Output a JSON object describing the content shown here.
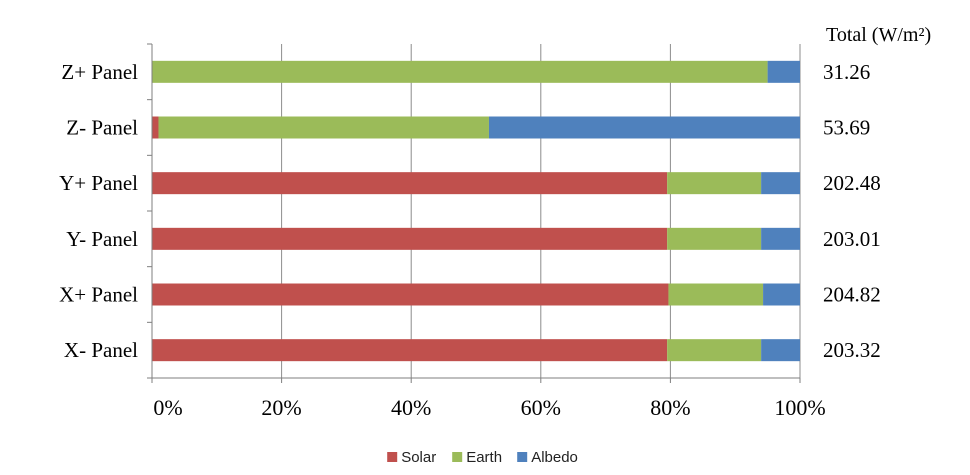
{
  "chart_data": {
    "type": "bar",
    "orientation": "horizontal",
    "stacked": "percent",
    "title": "",
    "xlabel": "",
    "ylabel": "",
    "xlim": [
      0,
      100
    ],
    "x_ticks": [
      "0%",
      "20%",
      "40%",
      "60%",
      "80%",
      "100%"
    ],
    "grid": "vertical",
    "legend_position": "bottom",
    "categories": [
      "Z+ Panel",
      "Z- Panel",
      "Y+ Panel",
      "Y- Panel",
      "X+ Panel",
      "X- Panel"
    ],
    "series": [
      {
        "name": "Solar",
        "color": "#c0504d",
        "values": [
          0,
          1,
          79.5,
          79.5,
          79.7,
          79.5
        ]
      },
      {
        "name": "Earth",
        "color": "#9bbb59",
        "values": [
          95,
          51,
          14.5,
          14.5,
          14.6,
          14.5
        ]
      },
      {
        "name": "Albedo",
        "color": "#4f81bd",
        "values": [
          5,
          48,
          6,
          6,
          5.7,
          6
        ]
      }
    ],
    "totals_header": "Total (W/m²)",
    "totals": [
      "31.26",
      "53.69",
      "202.48",
      "203.01",
      "204.82",
      "203.32"
    ]
  }
}
